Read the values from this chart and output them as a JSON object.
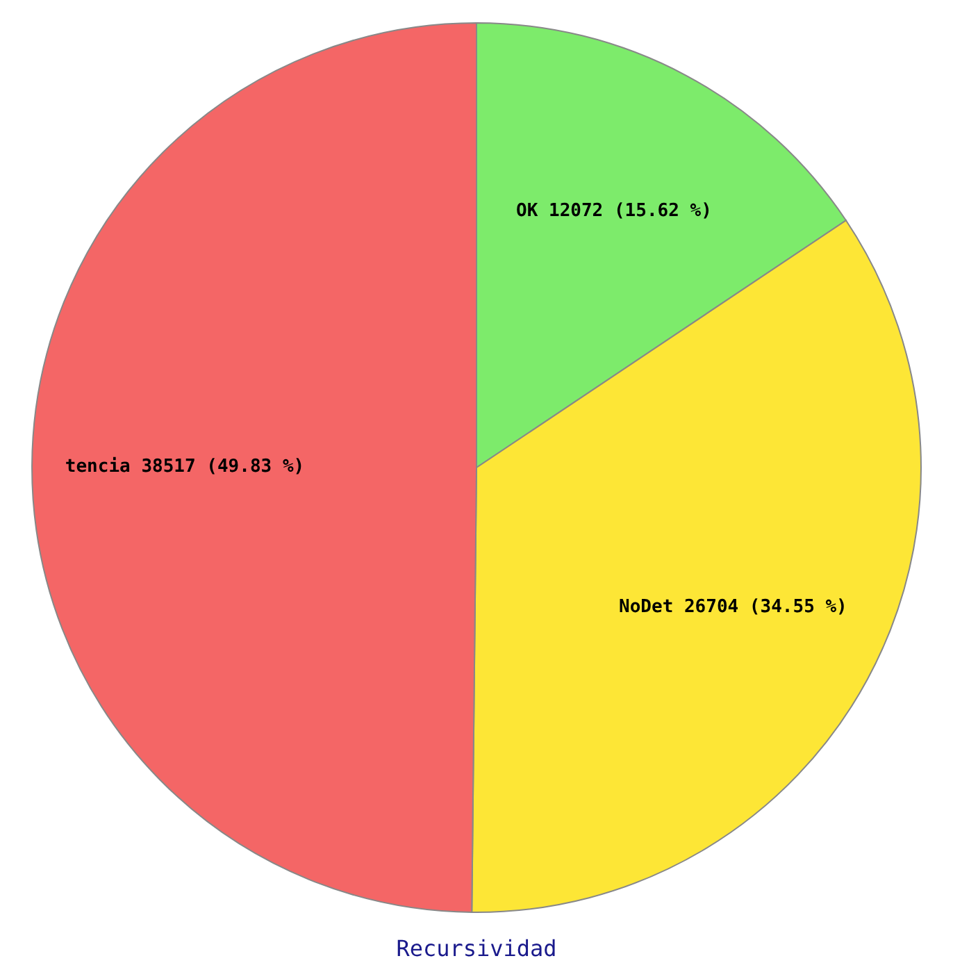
{
  "chart_data": {
    "type": "pie",
    "title": "Recursividad",
    "categories": [
      "OK",
      "NoDet",
      "tencia"
    ],
    "values": [
      12072,
      26704,
      38517
    ],
    "value_labels": [
      "12072 (15.62 %)",
      "26704 (34.55 %)",
      "38517 (49.83 %)"
    ],
    "colors": [
      "#7deb6b",
      "#fde636",
      "#f46666"
    ],
    "legend": false
  }
}
